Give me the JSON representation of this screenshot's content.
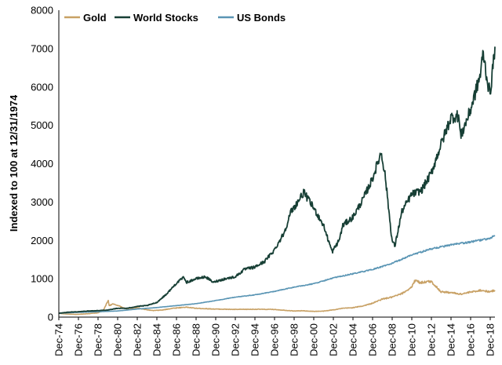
{
  "chart_data": {
    "type": "line",
    "title": "",
    "xlabel": "",
    "ylabel": "Indexed to 100 at 12/31/1974",
    "ylim": [
      0,
      8000
    ],
    "yticks": [
      0,
      1000,
      2000,
      3000,
      4000,
      5000,
      6000,
      7000,
      8000
    ],
    "ytick_labels": [
      "0",
      "1000",
      "2000",
      "3000",
      "4000",
      "5000",
      "6000",
      "7000",
      "8000"
    ],
    "xlim": [
      1974.92,
      2019.4
    ],
    "x_tick_years": [
      1974.92,
      1976.92,
      1978.92,
      1980.92,
      1982.92,
      1984.92,
      1986.92,
      1988.92,
      1990.92,
      1992.92,
      1994.92,
      1996.92,
      1998.92,
      2000.92,
      2002.92,
      2004.92,
      2006.92,
      2008.92,
      2010.92,
      2012.92,
      2014.92,
      2016.92,
      2018.92
    ],
    "x_tick_labels": [
      "Dec-74",
      "Dec-76",
      "Dec-78",
      "Dec-80",
      "Dec-82",
      "Dec-84",
      "Dec-86",
      "Dec-88",
      "Dec-90",
      "Dec-92",
      "Dec-94",
      "Dec-96",
      "Dec-98",
      "Dec-00",
      "Dec-02",
      "Dec-04",
      "Dec-06",
      "Dec-08",
      "Dec-10",
      "Dec-12",
      "Dec-14",
      "Dec-16",
      "Dec-18"
    ],
    "legend_position": "top-left",
    "series": [
      {
        "name": "Gold",
        "color": "#c8a165",
        "x": [
          1974.92,
          1975.5,
          1976.7,
          1977.9,
          1978.9,
          1979.5,
          1979.95,
          1980.05,
          1980.4,
          1980.9,
          1981.9,
          1982.5,
          1982.9,
          1983.4,
          1984.5,
          1985.5,
          1986.5,
          1987.9,
          1988.9,
          1989.9,
          1990.9,
          1992.9,
          1994.9,
          1996.9,
          1998.9,
          1999.8,
          2000.9,
          2001.9,
          2002.9,
          2003.9,
          2004.9,
          2005.9,
          2006.9,
          2007.9,
          2008.9,
          2009.9,
          2010.9,
          2011.3,
          2011.7,
          2012.9,
          2013.9,
          2014.9,
          2015.9,
          2016.9,
          2017.9,
          2018.9,
          2019.4
        ],
        "values": [
          100,
          85,
          70,
          90,
          110,
          190,
          440,
          300,
          340,
          310,
          200,
          220,
          250,
          210,
          170,
          185,
          230,
          260,
          230,
          220,
          210,
          200,
          205,
          200,
          160,
          165,
          150,
          155,
          190,
          230,
          245,
          290,
          360,
          470,
          520,
          610,
          780,
          980,
          900,
          930,
          660,
          640,
          600,
          650,
          700,
          660,
          700
        ]
      },
      {
        "name": "World Stocks",
        "color": "#173f35",
        "x": [
          1974.92,
          1975.9,
          1976.9,
          1977.9,
          1978.9,
          1979.9,
          1980.9,
          1981.9,
          1982.9,
          1983.9,
          1984.9,
          1985.9,
          1986.9,
          1987.7,
          1987.9,
          1988.9,
          1989.9,
          1990.7,
          1990.9,
          1991.9,
          1992.9,
          1993.9,
          1994.9,
          1995.9,
          1996.9,
          1997.9,
          1998.6,
          1998.9,
          1999.9,
          2000.9,
          2001.9,
          2002.8,
          2003.5,
          2003.9,
          2004.9,
          2005.9,
          2006.9,
          2007.8,
          2008.2,
          2008.9,
          2009.2,
          2009.9,
          2010.9,
          2011.9,
          2012.9,
          2013.9,
          2014.9,
          2015.7,
          2015.9,
          2016.9,
          2017.9,
          2018.2,
          2018.6,
          2018.9,
          2019.4
        ],
        "values": [
          100,
          130,
          140,
          160,
          170,
          185,
          230,
          230,
          280,
          300,
          380,
          600,
          880,
          1050,
          900,
          1000,
          1050,
          900,
          930,
          1000,
          1050,
          1250,
          1300,
          1450,
          1750,
          2200,
          2750,
          2850,
          3250,
          2850,
          2400,
          1700,
          2000,
          2400,
          2600,
          3050,
          3600,
          4300,
          3700,
          2000,
          1850,
          2750,
          3200,
          3300,
          3750,
          4500,
          5200,
          5250,
          4700,
          5400,
          6300,
          6900,
          6200,
          5800,
          7050
        ]
      },
      {
        "name": "US Bonds",
        "color": "#5a95b4",
        "x": [
          1974.92,
          1976.9,
          1978.9,
          1980.9,
          1982.9,
          1984.9,
          1986.9,
          1988.9,
          1990.9,
          1992.9,
          1994.9,
          1996.9,
          1998.9,
          2000.9,
          2002.9,
          2004.9,
          2006.9,
          2008.9,
          2010.9,
          2012.9,
          2014.9,
          2016.9,
          2018.9,
          2019.4
        ],
        "values": [
          100,
          125,
          140,
          160,
          210,
          250,
          300,
          350,
          430,
          520,
          580,
          670,
          780,
          870,
          1020,
          1130,
          1240,
          1400,
          1620,
          1780,
          1880,
          1960,
          2050,
          2130
        ]
      }
    ]
  }
}
